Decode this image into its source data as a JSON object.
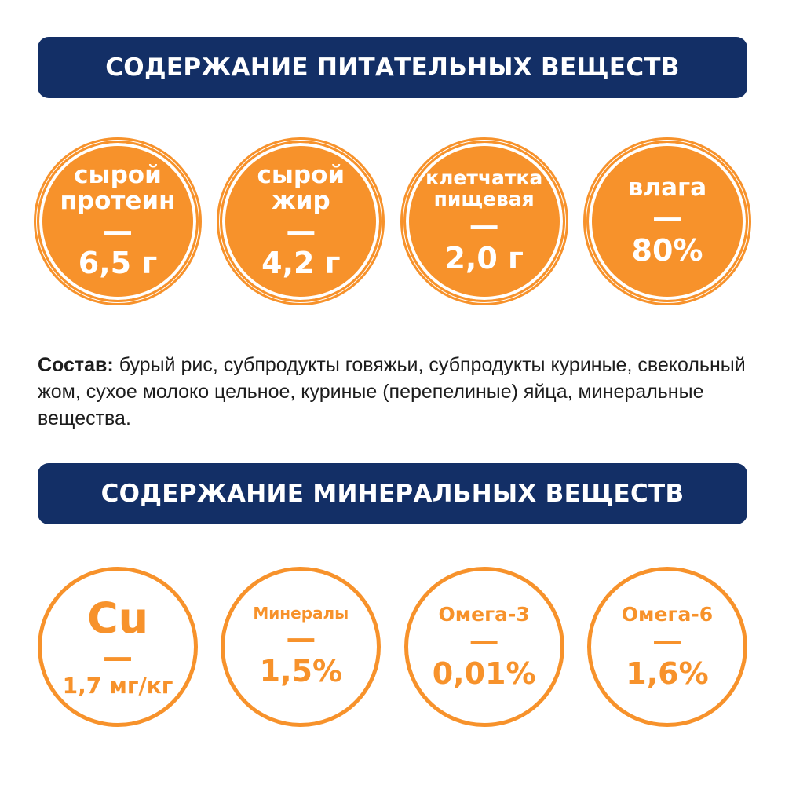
{
  "nutrients": {
    "title": "СОДЕРЖАНИЕ ПИТАТЕЛЬНЫХ ВЕЩЕСТВ",
    "items": [
      {
        "label_line1": "сырой",
        "label_line2": "протеин",
        "dash": "—",
        "value": "6,5 г"
      },
      {
        "label_line1": "сырой",
        "label_line2": "жир",
        "dash": "—",
        "value": "4,2 г"
      },
      {
        "label_line1": "клетчатка",
        "label_line2": "пищевая",
        "dash": "—",
        "value": "2,0 г"
      },
      {
        "label_line1": "влага",
        "dash": "—",
        "value": "80%"
      }
    ]
  },
  "composition": {
    "label": "Состав:",
    "text": " бурый рис, субпродукты говяжьи, субпродукты куриные, свекольный жом, сухое молоко цельное, куриные (перепелиные) яйца, минеральные вещества."
  },
  "minerals": {
    "title": "СОДЕРЖАНИЕ МИНЕРАЛЬНЫХ ВЕЩЕСТВ",
    "items": [
      {
        "label": "Cu",
        "dash": "—",
        "value": "1,7 мг/кг"
      },
      {
        "label": "Минералы",
        "dash": "—",
        "value": "1,5%"
      },
      {
        "label": "Омега-3",
        "dash": "—",
        "value": "0,01%"
      },
      {
        "label": "Омега-6",
        "dash": "—",
        "value": "1,6%"
      }
    ]
  },
  "colors": {
    "banner": "#132f66",
    "accent": "#f7922b",
    "text": "#1c1c1c"
  }
}
